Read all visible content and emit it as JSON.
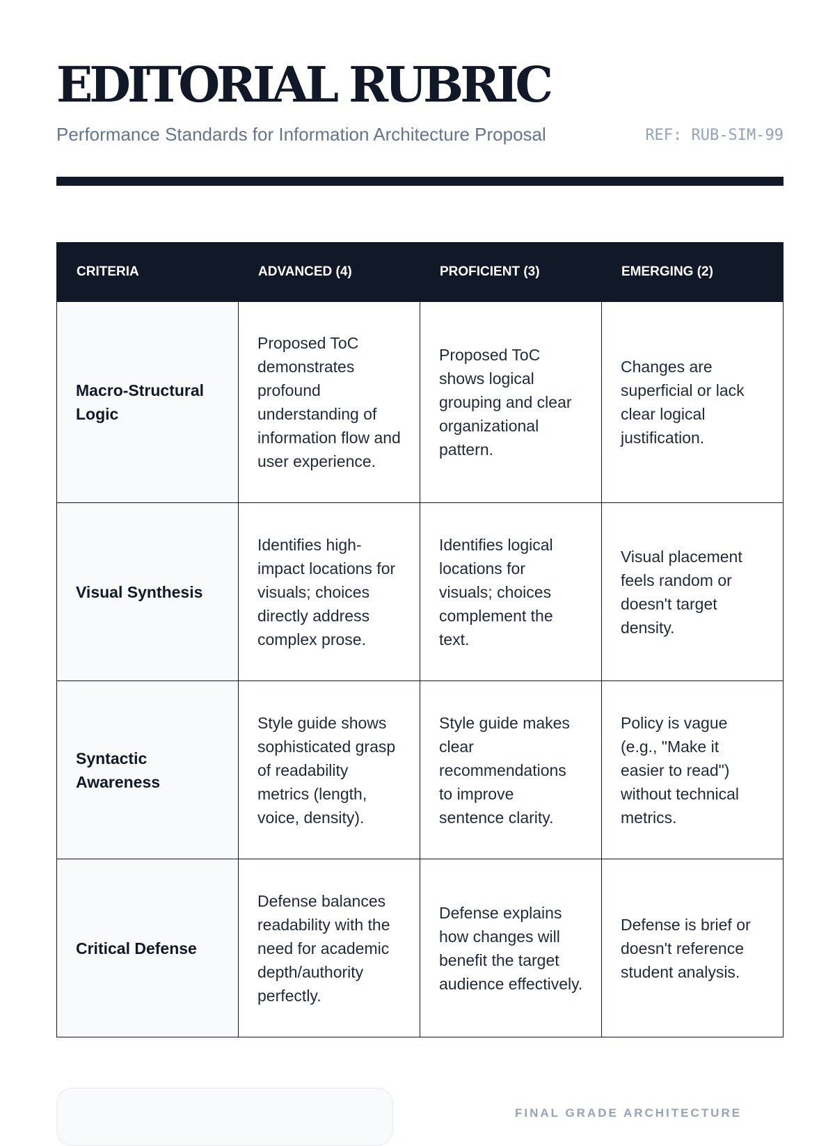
{
  "header": {
    "title": "EDITORIAL RUBRIC",
    "subtitle": "Performance Standards for Information Architecture Proposal",
    "ref": "REF: RUB-SIM-99"
  },
  "table": {
    "columns": [
      "CRITERIA",
      "ADVANCED (4)",
      "PROFICIENT (3)",
      "EMERGING (2)"
    ],
    "rows": [
      {
        "criteria": "Macro-Structural Logic",
        "advanced": "Proposed ToC demonstrates profound understanding of information flow and user experience.",
        "proficient": "Proposed ToC shows logical grouping and clear organizational pattern.",
        "emerging": "Changes are superficial or lack clear logical justification."
      },
      {
        "criteria": "Visual Synthesis",
        "advanced": "Identifies high-impact locations for visuals; choices directly address complex prose.",
        "proficient": "Identifies logical locations for visuals; choices complement the text.",
        "emerging": "Visual placement feels random or doesn't target density."
      },
      {
        "criteria": "Syntactic Awareness",
        "advanced": "Style guide shows sophisticated grasp of readability metrics (length, voice, density).",
        "proficient": "Style guide makes clear recommendations to improve sentence clarity.",
        "emerging": "Policy is vague (e.g., \"Make it easier to read\") without technical metrics."
      },
      {
        "criteria": "Critical Defense",
        "advanced": "Defense balances readability with the need for academic depth/authority perfectly.",
        "proficient": "Defense explains how changes will benefit the target audience effectively.",
        "emerging": "Defense is brief or doesn't reference student analysis."
      }
    ]
  },
  "footer": {
    "final_label": "FINAL GRADE ARCHITECTURE"
  }
}
